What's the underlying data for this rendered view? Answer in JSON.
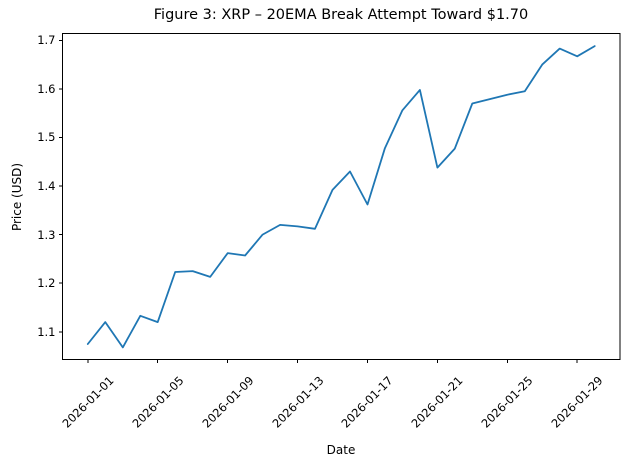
{
  "chart_data": {
    "type": "line",
    "title": "Figure 3: XRP – 20EMA Break Attempt Toward $1.70",
    "xlabel": "Date",
    "ylabel": "Price (USD)",
    "series_name": "XRP price",
    "x": [
      "2026-01-01",
      "2026-01-02",
      "2026-01-03",
      "2026-01-04",
      "2026-01-05",
      "2026-01-06",
      "2026-01-07",
      "2026-01-08",
      "2026-01-09",
      "2026-01-10",
      "2026-01-11",
      "2026-01-12",
      "2026-01-13",
      "2026-01-14",
      "2026-01-15",
      "2026-01-16",
      "2026-01-17",
      "2026-01-18",
      "2026-01-19",
      "2026-01-20",
      "2026-01-21",
      "2026-01-22",
      "2026-01-23",
      "2026-01-24",
      "2026-01-25",
      "2026-01-26",
      "2026-01-27",
      "2026-01-28",
      "2026-01-29",
      "2026-01-30"
    ],
    "values": [
      1.075,
      1.12,
      1.068,
      1.133,
      1.12,
      1.223,
      1.225,
      1.213,
      1.262,
      1.257,
      1.3,
      1.32,
      1.317,
      1.312,
      1.392,
      1.43,
      1.362,
      1.478,
      1.556,
      1.598,
      1.438,
      1.477,
      1.57,
      1.579,
      1.588,
      1.595,
      1.65,
      1.683,
      1.667,
      1.688
    ],
    "x_tick_labels": [
      "2026-01-01",
      "2026-01-05",
      "2026-01-09",
      "2026-01-13",
      "2026-01-17",
      "2026-01-21",
      "2026-01-25",
      "2026-01-29"
    ],
    "x_tick_rotation_deg": 45,
    "y_ticks": [
      1.1,
      1.2,
      1.3,
      1.4,
      1.5,
      1.6,
      1.7
    ],
    "ylim": [
      1.043,
      1.714
    ],
    "xlim_days": [
      -1.45,
      30.45
    ],
    "line_color": "#1f77b4",
    "axis_color": "#000000",
    "grid": false,
    "legend": null
  }
}
